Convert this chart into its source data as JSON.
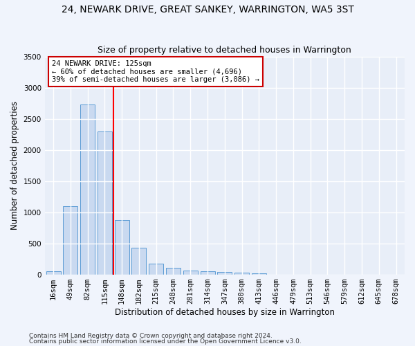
{
  "title": "24, NEWARK DRIVE, GREAT SANKEY, WARRINGTON, WA5 3ST",
  "subtitle": "Size of property relative to detached houses in Warrington",
  "xlabel": "Distribution of detached houses by size in Warrington",
  "ylabel": "Number of detached properties",
  "bin_labels": [
    "16sqm",
    "49sqm",
    "82sqm",
    "115sqm",
    "148sqm",
    "182sqm",
    "215sqm",
    "248sqm",
    "281sqm",
    "314sqm",
    "347sqm",
    "380sqm",
    "413sqm",
    "446sqm",
    "479sqm",
    "513sqm",
    "546sqm",
    "579sqm",
    "612sqm",
    "645sqm",
    "678sqm"
  ],
  "bar_values": [
    50,
    1100,
    2730,
    2300,
    880,
    430,
    170,
    110,
    60,
    50,
    40,
    30,
    20,
    0,
    0,
    0,
    0,
    0,
    0,
    0,
    0
  ],
  "bar_color": "#c9d9f0",
  "bar_edge_color": "#5b9bd5",
  "background_color": "#e8eef8",
  "grid_color": "#ffffff",
  "annotation_text": "24 NEWARK DRIVE: 125sqm\n← 60% of detached houses are smaller (4,696)\n39% of semi-detached houses are larger (3,086) →",
  "annotation_box_color": "#ffffff",
  "annotation_box_edge_color": "#cc0000",
  "ylim": [
    0,
    3500
  ],
  "yticks": [
    0,
    500,
    1000,
    1500,
    2000,
    2500,
    3000,
    3500
  ],
  "footer_line1": "Contains HM Land Registry data © Crown copyright and database right 2024.",
  "footer_line2": "Contains public sector information licensed under the Open Government Licence v3.0.",
  "title_fontsize": 10,
  "subtitle_fontsize": 9,
  "axis_label_fontsize": 8.5,
  "tick_fontsize": 7.5,
  "annotation_fontsize": 7.5,
  "footer_fontsize": 6.5
}
